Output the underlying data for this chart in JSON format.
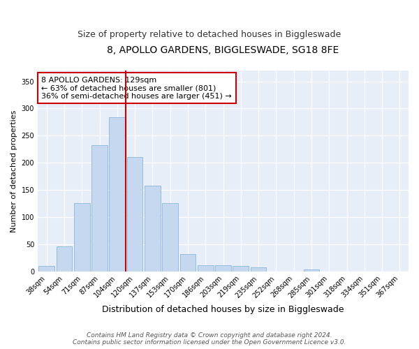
{
  "title": "8, APOLLO GARDENS, BIGGLESWADE, SG18 8FE",
  "subtitle": "Size of property relative to detached houses in Biggleswade",
  "xlabel": "Distribution of detached houses by size in Biggleswade",
  "ylabel": "Number of detached properties",
  "categories": [
    "38sqm",
    "54sqm",
    "71sqm",
    "87sqm",
    "104sqm",
    "120sqm",
    "137sqm",
    "153sqm",
    "170sqm",
    "186sqm",
    "203sqm",
    "219sqm",
    "235sqm",
    "252sqm",
    "268sqm",
    "285sqm",
    "301sqm",
    "318sqm",
    "334sqm",
    "351sqm",
    "367sqm"
  ],
  "values": [
    10,
    46,
    126,
    232,
    284,
    211,
    158,
    126,
    32,
    11,
    11,
    10,
    7,
    0,
    0,
    3,
    0,
    0,
    0,
    0,
    0
  ],
  "bar_color": "#c5d8f0",
  "bar_edge_color": "#7aadd4",
  "vline_color": "#cc0000",
  "annotation_text": "8 APOLLO GARDENS: 129sqm\n← 63% of detached houses are smaller (801)\n36% of semi-detached houses are larger (451) →",
  "annotation_box_color": "#ffffff",
  "annotation_box_edge_color": "#cc0000",
  "ylim": [
    0,
    370
  ],
  "yticks": [
    0,
    50,
    100,
    150,
    200,
    250,
    300,
    350
  ],
  "footer_line1": "Contains HM Land Registry data © Crown copyright and database right 2024.",
  "footer_line2": "Contains public sector information licensed under the Open Government Licence v3.0.",
  "background_color": "#ffffff",
  "plot_bg_color": "#e8eef8",
  "title_fontsize": 10,
  "subtitle_fontsize": 9,
  "xlabel_fontsize": 9,
  "ylabel_fontsize": 8,
  "tick_fontsize": 7,
  "annotation_fontsize": 8,
  "footer_fontsize": 6.5
}
